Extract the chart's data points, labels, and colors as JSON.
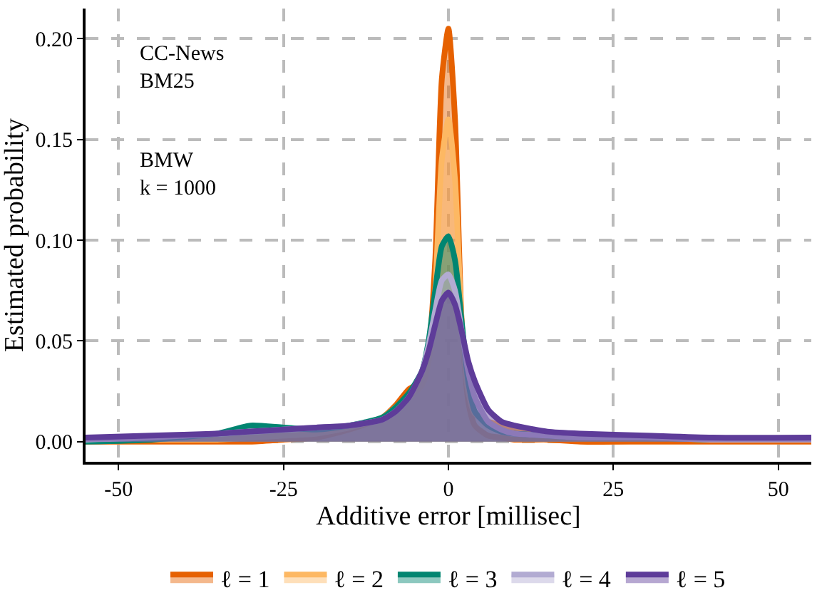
{
  "chart_data": {
    "type": "area",
    "xlabel": "Additive error [millisec]",
    "ylabel": "Estimated probability",
    "annotations": [
      "CC-News\nBM25",
      "BMW\nk = 1000"
    ],
    "x": [
      -55,
      -45,
      -35,
      -30,
      -25,
      -20,
      -15,
      -10,
      -8,
      -6,
      -4,
      -3,
      -2,
      -1,
      0,
      1,
      2,
      3,
      4,
      6,
      8,
      10,
      15,
      20,
      30,
      40,
      55
    ],
    "xlim": [
      -55,
      55
    ],
    "xticks": [
      -50,
      -25,
      0,
      25,
      50
    ],
    "ylim": [
      -0.01,
      0.215
    ],
    "yticks": [
      {
        "value": 0,
        "label": "0.00"
      },
      {
        "value": 0.05,
        "label": "0.05"
      },
      {
        "value": 0.1,
        "label": "0.10"
      },
      {
        "value": 0.15,
        "label": "0.15"
      },
      {
        "value": 0.2,
        "label": "0.20"
      }
    ],
    "grid": true,
    "legend": "bottom",
    "line_style": "solid",
    "series": [
      {
        "name": "ℓ = 1",
        "color": "#e66101",
        "values": [
          0,
          0,
          0,
          0,
          0.001,
          0.002,
          0.006,
          0.012,
          0.018,
          0.026,
          0.03,
          0.045,
          0.09,
          0.18,
          0.205,
          0.16,
          0.06,
          0.02,
          0.008,
          0.003,
          0.002,
          0.001,
          0.001,
          0,
          0,
          0,
          0
        ]
      },
      {
        "name": "ℓ = 2",
        "color": "#fdb863",
        "values": [
          0.001,
          0.001,
          0.001,
          0.002,
          0.003,
          0.004,
          0.007,
          0.012,
          0.017,
          0.022,
          0.028,
          0.04,
          0.075,
          0.14,
          0.16,
          0.13,
          0.06,
          0.025,
          0.014,
          0.01,
          0.008,
          0.006,
          0.004,
          0.003,
          0.002,
          0.001,
          0.001
        ]
      },
      {
        "name": "ℓ = 3",
        "color": "#018571",
        "values": [
          0,
          0.001,
          0.004,
          0.008,
          0.007,
          0.006,
          0.008,
          0.012,
          0.017,
          0.024,
          0.035,
          0.05,
          0.075,
          0.097,
          0.102,
          0.09,
          0.06,
          0.03,
          0.015,
          0.008,
          0.005,
          0.004,
          0.003,
          0.002,
          0.002,
          0.001,
          0.001
        ]
      },
      {
        "name": "ℓ = 4",
        "color": "#b2abd2",
        "values": [
          0.001,
          0.002,
          0.004,
          0.005,
          0.006,
          0.007,
          0.008,
          0.011,
          0.015,
          0.022,
          0.035,
          0.048,
          0.065,
          0.08,
          0.083,
          0.075,
          0.055,
          0.035,
          0.022,
          0.01,
          0.006,
          0.004,
          0.003,
          0.002,
          0.002,
          0.001,
          0.001
        ]
      },
      {
        "name": "ℓ = 5",
        "color": "#5e3c99",
        "values": [
          0.002,
          0.003,
          0.004,
          0.005,
          0.006,
          0.007,
          0.008,
          0.011,
          0.015,
          0.022,
          0.035,
          0.045,
          0.058,
          0.07,
          0.074,
          0.068,
          0.055,
          0.04,
          0.03,
          0.016,
          0.01,
          0.008,
          0.005,
          0.004,
          0.003,
          0.002,
          0.002
        ]
      }
    ]
  }
}
